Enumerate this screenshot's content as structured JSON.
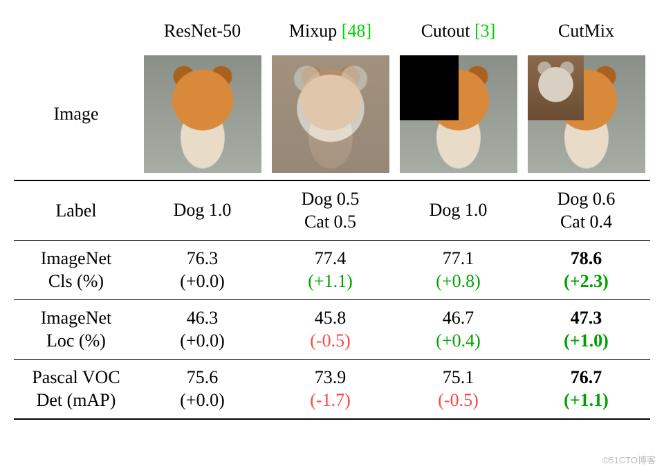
{
  "colors": {
    "cite": "#00d000",
    "delta_positive": "#00a000",
    "delta_negative": "#ff4444",
    "delta_baseline": "#000000",
    "text": "#000000",
    "background": "#ffffff",
    "rule": "#000000"
  },
  "typography": {
    "body_family": "Times New Roman",
    "body_size_pt": 20
  },
  "columns": [
    {
      "key": "resnet50",
      "title": "ResNet-50",
      "cite": ""
    },
    {
      "key": "mixup",
      "title": "Mixup",
      "cite": "[48]"
    },
    {
      "key": "cutout",
      "title": "Cutout",
      "cite": "[3]"
    },
    {
      "key": "cutmix",
      "title": "CutMix",
      "cite": ""
    }
  ],
  "row_labels": {
    "image": "Image",
    "label": "Label",
    "cls_l1": "ImageNet",
    "cls_l2": "Cls (%)",
    "loc_l1": "ImageNet",
    "loc_l2": "Loc (%)",
    "det_l1": "Pascal VOC",
    "det_l2": "Det (mAP)"
  },
  "labels": {
    "resnet50": {
      "l1": "Dog 1.0",
      "l2": ""
    },
    "mixup": {
      "l1": "Dog 0.5",
      "l2": "Cat 0.5"
    },
    "cutout": {
      "l1": "Dog 1.0",
      "l2": ""
    },
    "cutmix": {
      "l1": "Dog 0.6",
      "l2": "Cat 0.4"
    }
  },
  "metrics": {
    "cls": {
      "resnet50": {
        "value": "76.3",
        "delta": "(+0.0)",
        "color": "delta-black",
        "bold_value": false,
        "bold_delta": false
      },
      "mixup": {
        "value": "77.4",
        "delta": "(+1.1)",
        "color": "delta-green",
        "bold_value": false,
        "bold_delta": false
      },
      "cutout": {
        "value": "77.1",
        "delta": "(+0.8)",
        "color": "delta-green",
        "bold_value": false,
        "bold_delta": false
      },
      "cutmix": {
        "value": "78.6",
        "delta": "(+2.3)",
        "color": "delta-green",
        "bold_value": true,
        "bold_delta": true
      }
    },
    "loc": {
      "resnet50": {
        "value": "46.3",
        "delta": "(+0.0)",
        "color": "delta-black",
        "bold_value": false,
        "bold_delta": false
      },
      "mixup": {
        "value": "45.8",
        "delta": "(-0.5)",
        "color": "delta-red",
        "bold_value": false,
        "bold_delta": false
      },
      "cutout": {
        "value": "46.7",
        "delta": "(+0.4)",
        "color": "delta-green",
        "bold_value": false,
        "bold_delta": false
      },
      "cutmix": {
        "value": "47.3",
        "delta": "(+1.0)",
        "color": "delta-green",
        "bold_value": true,
        "bold_delta": true
      }
    },
    "det": {
      "resnet50": {
        "value": "75.6",
        "delta": "(+0.0)",
        "color": "delta-black",
        "bold_value": false,
        "bold_delta": false
      },
      "mixup": {
        "value": "73.9",
        "delta": "(-1.7)",
        "color": "delta-red",
        "bold_value": false,
        "bold_delta": false
      },
      "cutout": {
        "value": "75.1",
        "delta": "(-0.5)",
        "color": "delta-red",
        "bold_value": false,
        "bold_delta": false
      },
      "cutmix": {
        "value": "76.7",
        "delta": "(+1.1)",
        "color": "delta-green",
        "bold_value": true,
        "bold_delta": true
      }
    }
  },
  "images": {
    "resnet50": {
      "type": "dog"
    },
    "mixup": {
      "type": "mixup"
    },
    "cutout": {
      "type": "cutout"
    },
    "cutmix": {
      "type": "cutmix"
    }
  },
  "watermark": "©51CTO博客"
}
